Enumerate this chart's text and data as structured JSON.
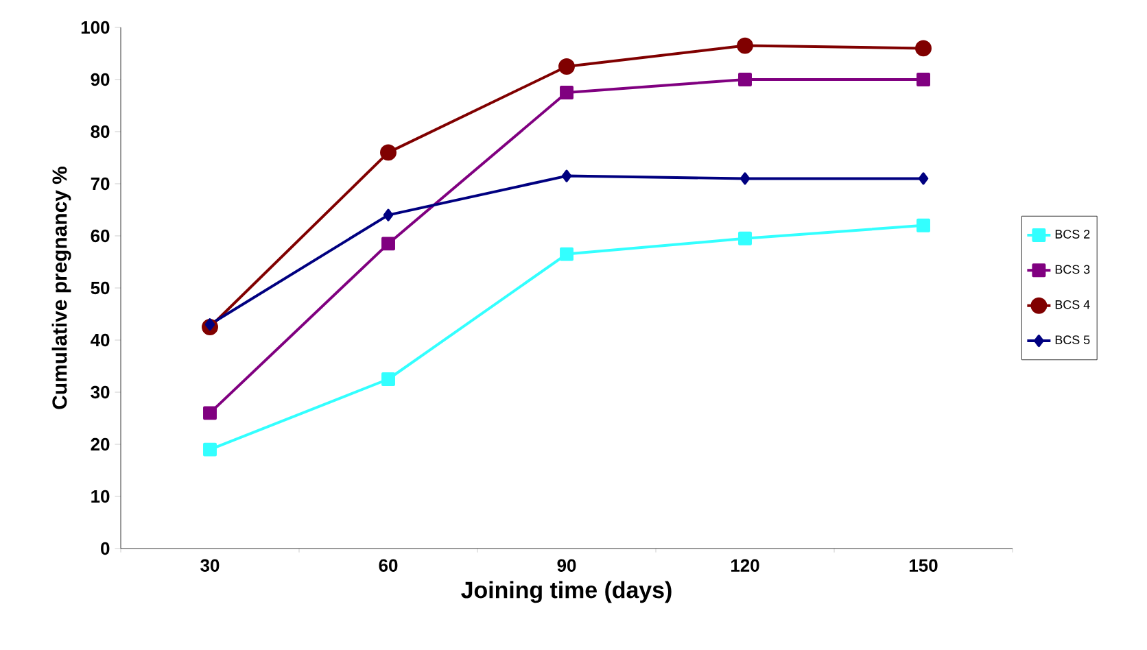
{
  "chart_data": {
    "type": "line",
    "xlabel": "Joining time (days)",
    "ylabel": "Cumulative pregnancy %",
    "categories": [
      "30",
      "60",
      "90",
      "120",
      "150"
    ],
    "ylim": [
      0,
      100
    ],
    "yticks": [
      0,
      10,
      20,
      30,
      40,
      50,
      60,
      70,
      80,
      90,
      100
    ],
    "grid": false,
    "legend": "right",
    "series": [
      {
        "name": "BCS 2",
        "color": "#33ffff",
        "marker": "square",
        "values": [
          19,
          32.5,
          56.5,
          59.5,
          62
        ]
      },
      {
        "name": "BCS 3",
        "color": "#800080",
        "marker": "square",
        "values": [
          26,
          58.5,
          87.5,
          90,
          90
        ]
      },
      {
        "name": "BCS 4",
        "color": "#800000",
        "marker": "circle",
        "values": [
          42.5,
          76,
          92.5,
          96.5,
          96
        ]
      },
      {
        "name": "BCS 5",
        "color": "#000080",
        "marker": "diamond",
        "values": [
          43,
          64,
          71.5,
          71,
          71
        ]
      }
    ]
  }
}
